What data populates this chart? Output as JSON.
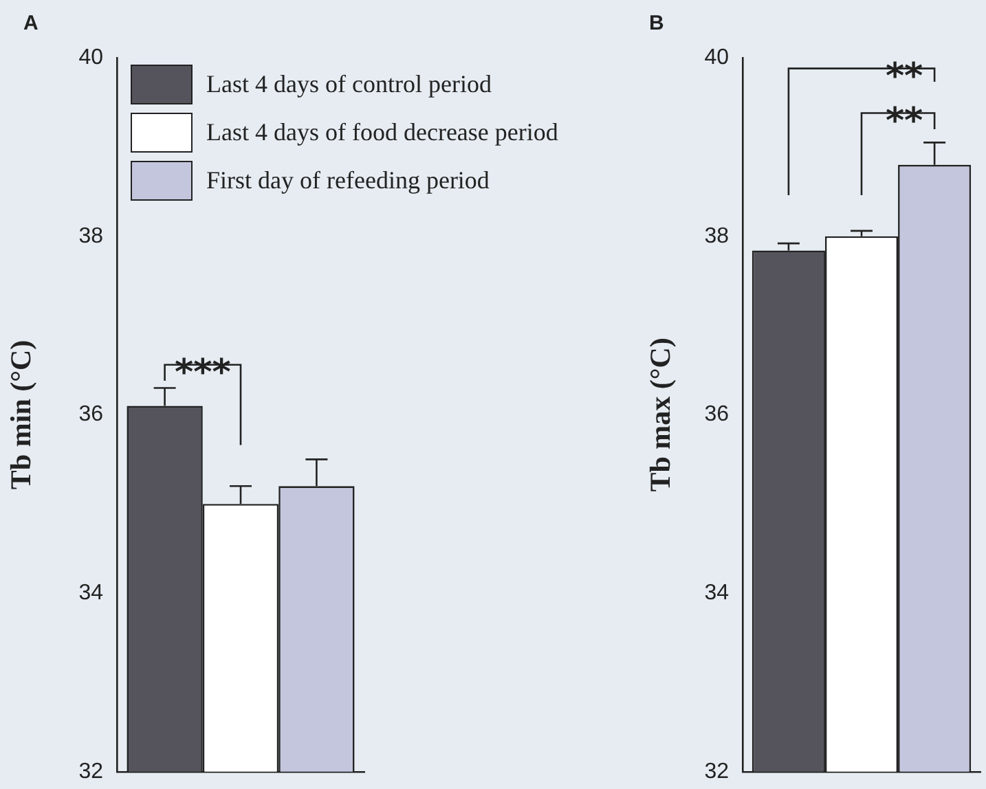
{
  "chart_data": [
    {
      "type": "bar",
      "title": "A",
      "ylabel": "Tb min (°C)",
      "categories": [
        null
      ],
      "tick_labels": "y",
      "legend": "top right",
      "series": [
        {
          "name": "Last 4 days of control period",
          "color": "#55545c",
          "values": [
            36.1
          ],
          "errors": [
            0.2
          ]
        },
        {
          "name": "Last 4 days of food decrease period",
          "color": "#ffffff",
          "values": [
            35.0
          ],
          "errors": [
            0.2
          ]
        },
        {
          "name": "First day of refeeding period",
          "color": "#c3c6dc",
          "values": [
            35.2
          ],
          "errors": [
            0.3
          ]
        }
      ],
      "ylim": [
        32,
        40
      ],
      "yticks": [
        32,
        34,
        36,
        38,
        40
      ],
      "annotations": [
        "***"
      ]
    },
    {
      "type": "bar",
      "title": "B",
      "ylabel": "Tb max (°C)",
      "categories": [
        null
      ],
      "tick_labels": "y",
      "series": [
        {
          "color": "#55545c",
          "values": [
            37.84
          ],
          "errors": [
            0.08
          ]
        },
        {
          "color": "#ffffff",
          "values": [
            38.0
          ],
          "errors": [
            0.06
          ]
        },
        {
          "color": "#c3c6dc",
          "values": [
            38.8
          ],
          "errors": [
            0.25
          ]
        }
      ],
      "ylim": [
        32,
        40
      ],
      "yticks": [
        32,
        34,
        36,
        38,
        40
      ],
      "annotations": [
        "**",
        "**"
      ]
    }
  ]
}
